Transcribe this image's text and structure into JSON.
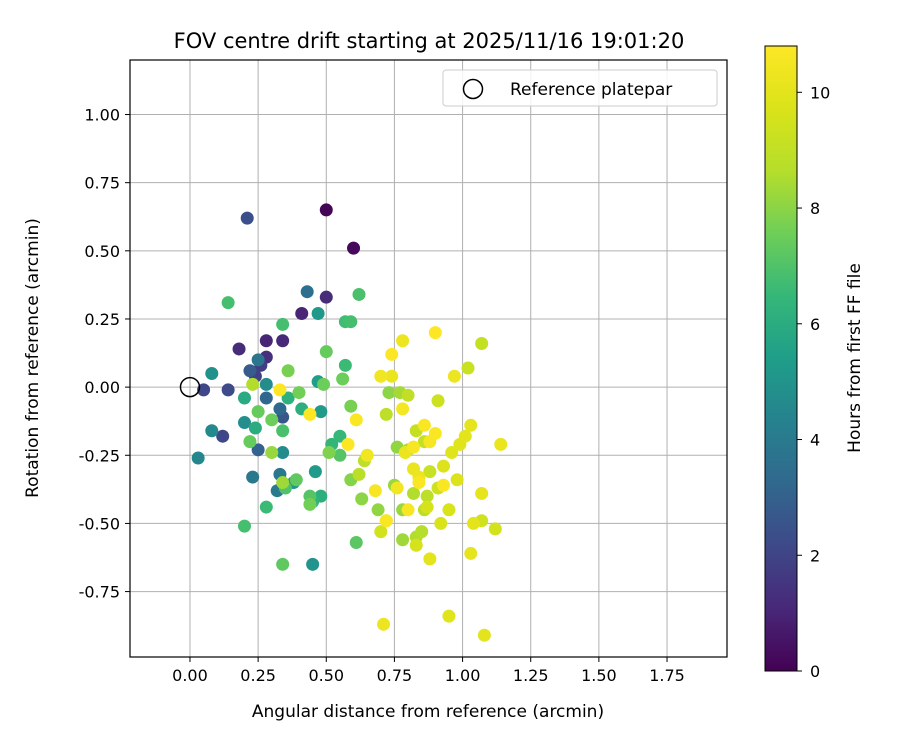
{
  "chart_data": {
    "type": "scatter",
    "title": "FOV centre drift starting at 2025/11/16 19:01:20",
    "xlabel": "Angular distance from reference (arcmin)",
    "ylabel": "Rotation from reference (arcmin)",
    "xlim": [
      -0.22,
      1.97
    ],
    "ylim": [
      -0.99,
      1.2
    ],
    "xticks": [
      "0.00",
      "0.25",
      "0.50",
      "0.75",
      "1.00",
      "1.25",
      "1.50",
      "1.75"
    ],
    "yticks": [
      "-0.75",
      "-0.50",
      "-0.25",
      "0.00",
      "0.25",
      "0.50",
      "0.75",
      "1.00"
    ],
    "grid": true,
    "legend": {
      "placement": "top-right",
      "entries": [
        "Reference platepar"
      ]
    },
    "reference_point": {
      "x": 0.0,
      "y": 0.0,
      "marker": "open-circle"
    },
    "colorbar": {
      "label": "Hours from first FF file",
      "range": [
        0,
        10.8
      ],
      "ticks": [
        "0",
        "2",
        "4",
        "6",
        "8",
        "10"
      ],
      "colormap": "viridis"
    },
    "points": [
      {
        "x": 0.5,
        "y": 0.65,
        "h": 0.1
      },
      {
        "x": 0.6,
        "y": 0.51,
        "h": 0.2
      },
      {
        "x": 0.21,
        "y": 0.62,
        "h": 2.4
      },
      {
        "x": 0.41,
        "y": 0.27,
        "h": 1.0
      },
      {
        "x": 0.5,
        "y": 0.33,
        "h": 1.2
      },
      {
        "x": 0.28,
        "y": 0.17,
        "h": 1.0
      },
      {
        "x": 0.34,
        "y": 0.17,
        "h": 1.1
      },
      {
        "x": 0.18,
        "y": 0.14,
        "h": 1.2
      },
      {
        "x": 0.28,
        "y": 0.11,
        "h": 1.3
      },
      {
        "x": 0.26,
        "y": 0.08,
        "h": 1.8
      },
      {
        "x": 0.24,
        "y": 0.04,
        "h": 1.9
      },
      {
        "x": 0.05,
        "y": -0.01,
        "h": 2.1
      },
      {
        "x": 0.14,
        "y": -0.01,
        "h": 2.2
      },
      {
        "x": 0.12,
        "y": -0.18,
        "h": 2.1
      },
      {
        "x": 0.34,
        "y": -0.11,
        "h": 2.6
      },
      {
        "x": 0.43,
        "y": 0.35,
        "h": 3.5
      },
      {
        "x": 0.25,
        "y": 0.1,
        "h": 3.8
      },
      {
        "x": 0.22,
        "y": 0.06,
        "h": 2.8
      },
      {
        "x": 0.28,
        "y": -0.04,
        "h": 3.2
      },
      {
        "x": 0.33,
        "y": -0.08,
        "h": 3.3
      },
      {
        "x": 0.25,
        "y": -0.23,
        "h": 3.0
      },
      {
        "x": 0.23,
        "y": -0.33,
        "h": 3.9
      },
      {
        "x": 0.33,
        "y": -0.32,
        "h": 3.9
      },
      {
        "x": 0.32,
        "y": -0.38,
        "h": 4.0
      },
      {
        "x": 0.45,
        "y": -0.65,
        "h": 5.0
      },
      {
        "x": 0.47,
        "y": 0.27,
        "h": 5.2
      },
      {
        "x": 0.08,
        "y": 0.05,
        "h": 4.9
      },
      {
        "x": 0.08,
        "y": -0.16,
        "h": 4.6
      },
      {
        "x": 0.03,
        "y": -0.26,
        "h": 4.5
      },
      {
        "x": 0.2,
        "y": -0.13,
        "h": 4.8
      },
      {
        "x": 0.28,
        "y": 0.01,
        "h": 4.7
      },
      {
        "x": 0.34,
        "y": -0.24,
        "h": 4.7
      },
      {
        "x": 0.38,
        "y": -0.35,
        "h": 5.0
      },
      {
        "x": 0.46,
        "y": -0.31,
        "h": 5.3
      },
      {
        "x": 0.48,
        "y": -0.09,
        "h": 5.3
      },
      {
        "x": 0.47,
        "y": 0.02,
        "h": 5.4
      },
      {
        "x": 0.2,
        "y": -0.04,
        "h": 5.9
      },
      {
        "x": 0.24,
        "y": -0.15,
        "h": 6.0
      },
      {
        "x": 0.36,
        "y": -0.04,
        "h": 6.2
      },
      {
        "x": 0.41,
        "y": -0.08,
        "h": 6.1
      },
      {
        "x": 0.48,
        "y": -0.4,
        "h": 6.1
      },
      {
        "x": 0.45,
        "y": -0.42,
        "h": 6.3
      },
      {
        "x": 0.52,
        "y": -0.21,
        "h": 6.4
      },
      {
        "x": 0.55,
        "y": -0.18,
        "h": 6.5
      },
      {
        "x": 0.57,
        "y": 0.08,
        "h": 6.6
      },
      {
        "x": 0.57,
        "y": 0.24,
        "h": 6.7
      },
      {
        "x": 0.59,
        "y": 0.24,
        "h": 6.8
      },
      {
        "x": 0.62,
        "y": 0.34,
        "h": 6.9
      },
      {
        "x": 0.14,
        "y": 0.31,
        "h": 6.8
      },
      {
        "x": 0.34,
        "y": 0.23,
        "h": 6.8
      },
      {
        "x": 0.34,
        "y": -0.16,
        "h": 6.9
      },
      {
        "x": 0.2,
        "y": -0.51,
        "h": 6.8
      },
      {
        "x": 0.28,
        "y": -0.44,
        "h": 6.6
      },
      {
        "x": 0.35,
        "y": -0.37,
        "h": 7.0
      },
      {
        "x": 0.44,
        "y": -0.4,
        "h": 7.1
      },
      {
        "x": 0.55,
        "y": -0.25,
        "h": 7.1
      },
      {
        "x": 0.61,
        "y": -0.57,
        "h": 7.2
      },
      {
        "x": 0.34,
        "y": -0.65,
        "h": 7.3
      },
      {
        "x": 0.39,
        "y": -0.34,
        "h": 7.3
      },
      {
        "x": 0.5,
        "y": 0.13,
        "h": 7.4
      },
      {
        "x": 0.49,
        "y": 0.01,
        "h": 7.5
      },
      {
        "x": 0.56,
        "y": 0.03,
        "h": 7.5
      },
      {
        "x": 0.59,
        "y": -0.07,
        "h": 7.7
      },
      {
        "x": 0.4,
        "y": -0.02,
        "h": 7.6
      },
      {
        "x": 0.36,
        "y": 0.06,
        "h": 7.7
      },
      {
        "x": 0.22,
        "y": -0.2,
        "h": 7.4
      },
      {
        "x": 0.3,
        "y": -0.12,
        "h": 7.5
      },
      {
        "x": 0.25,
        "y": -0.09,
        "h": 7.4
      },
      {
        "x": 0.44,
        "y": -0.43,
        "h": 7.6
      },
      {
        "x": 0.51,
        "y": -0.24,
        "h": 7.8
      },
      {
        "x": 0.59,
        "y": -0.34,
        "h": 7.9
      },
      {
        "x": 0.63,
        "y": -0.41,
        "h": 8.0
      },
      {
        "x": 0.69,
        "y": -0.45,
        "h": 8.1
      },
      {
        "x": 0.73,
        "y": -0.02,
        "h": 8.0
      },
      {
        "x": 0.76,
        "y": -0.22,
        "h": 8.1
      },
      {
        "x": 0.75,
        "y": -0.36,
        "h": 8.2
      },
      {
        "x": 0.78,
        "y": -0.45,
        "h": 8.2
      },
      {
        "x": 0.78,
        "y": -0.56,
        "h": 8.3
      },
      {
        "x": 0.34,
        "y": -0.35,
        "h": 8.3
      },
      {
        "x": 0.3,
        "y": -0.24,
        "h": 8.2
      },
      {
        "x": 0.23,
        "y": 0.01,
        "h": 8.6
      },
      {
        "x": 0.77,
        "y": -0.02,
        "h": 8.4
      },
      {
        "x": 0.8,
        "y": -0.23,
        "h": 8.5
      },
      {
        "x": 0.82,
        "y": -0.39,
        "h": 8.6
      },
      {
        "x": 0.83,
        "y": -0.55,
        "h": 8.6
      },
      {
        "x": 0.85,
        "y": -0.53,
        "h": 8.7
      },
      {
        "x": 0.86,
        "y": -0.45,
        "h": 8.8
      },
      {
        "x": 0.87,
        "y": -0.4,
        "h": 8.9
      },
      {
        "x": 0.62,
        "y": -0.32,
        "h": 8.8
      },
      {
        "x": 0.64,
        "y": -0.27,
        "h": 8.9
      },
      {
        "x": 0.72,
        "y": -0.1,
        "h": 8.9
      },
      {
        "x": 0.8,
        "y": -0.03,
        "h": 9.0
      },
      {
        "x": 0.83,
        "y": -0.16,
        "h": 9.1
      },
      {
        "x": 0.86,
        "y": -0.2,
        "h": 9.1
      },
      {
        "x": 0.88,
        "y": -0.31,
        "h": 9.2
      },
      {
        "x": 0.91,
        "y": -0.37,
        "h": 9.3
      },
      {
        "x": 0.91,
        "y": -0.05,
        "h": 9.3
      },
      {
        "x": 1.02,
        "y": 0.07,
        "h": 9.2
      },
      {
        "x": 1.07,
        "y": 0.16,
        "h": 9.1
      },
      {
        "x": 1.07,
        "y": -0.49,
        "h": 9.4
      },
      {
        "x": 1.12,
        "y": -0.52,
        "h": 9.5
      },
      {
        "x": 0.7,
        "y": -0.53,
        "h": 9.5
      },
      {
        "x": 0.72,
        "y": -0.49,
        "h": 9.5
      },
      {
        "x": 0.83,
        "y": -0.58,
        "h": 9.6
      },
      {
        "x": 0.87,
        "y": -0.44,
        "h": 9.6
      },
      {
        "x": 0.92,
        "y": -0.5,
        "h": 9.7
      },
      {
        "x": 0.95,
        "y": -0.45,
        "h": 9.7
      },
      {
        "x": 0.98,
        "y": -0.34,
        "h": 9.8
      },
      {
        "x": 0.93,
        "y": -0.29,
        "h": 9.8
      },
      {
        "x": 0.96,
        "y": -0.24,
        "h": 9.9
      },
      {
        "x": 0.99,
        "y": -0.21,
        "h": 9.9
      },
      {
        "x": 1.01,
        "y": -0.18,
        "h": 10.0
      },
      {
        "x": 1.03,
        "y": -0.14,
        "h": 10.1
      },
      {
        "x": 1.04,
        "y": -0.5,
        "h": 10.0
      },
      {
        "x": 1.03,
        "y": -0.61,
        "h": 10.1
      },
      {
        "x": 1.07,
        "y": -0.39,
        "h": 10.1
      },
      {
        "x": 1.14,
        "y": -0.21,
        "h": 10.2
      },
      {
        "x": 0.95,
        "y": -0.84,
        "h": 9.9
      },
      {
        "x": 1.08,
        "y": -0.91,
        "h": 10.0
      },
      {
        "x": 0.71,
        "y": -0.87,
        "h": 10.3
      },
      {
        "x": 0.78,
        "y": 0.17,
        "h": 10.3
      },
      {
        "x": 0.74,
        "y": 0.04,
        "h": 10.2
      },
      {
        "x": 0.7,
        "y": 0.04,
        "h": 10.4
      },
      {
        "x": 0.97,
        "y": 0.04,
        "h": 10.3
      },
      {
        "x": 0.79,
        "y": -0.24,
        "h": 10.2
      },
      {
        "x": 0.82,
        "y": -0.3,
        "h": 10.2
      },
      {
        "x": 0.84,
        "y": -0.33,
        "h": 10.3
      },
      {
        "x": 0.88,
        "y": -0.63,
        "h": 10.0
      },
      {
        "x": 0.65,
        "y": -0.25,
        "h": 10.4
      },
      {
        "x": 0.76,
        "y": -0.37,
        "h": 10.4
      },
      {
        "x": 0.78,
        "y": -0.08,
        "h": 10.5
      },
      {
        "x": 0.82,
        "y": -0.22,
        "h": 10.6
      },
      {
        "x": 0.86,
        "y": -0.14,
        "h": 10.7
      },
      {
        "x": 0.88,
        "y": -0.2,
        "h": 10.6
      },
      {
        "x": 0.9,
        "y": -0.17,
        "h": 10.7
      },
      {
        "x": 0.84,
        "y": -0.35,
        "h": 10.7
      },
      {
        "x": 0.93,
        "y": -0.36,
        "h": 10.7
      },
      {
        "x": 0.68,
        "y": -0.38,
        "h": 10.6
      },
      {
        "x": 0.72,
        "y": -0.49,
        "h": 10.7
      },
      {
        "x": 0.8,
        "y": -0.45,
        "h": 10.6
      },
      {
        "x": 0.61,
        "y": -0.12,
        "h": 10.7
      },
      {
        "x": 0.58,
        "y": -0.21,
        "h": 10.8
      },
      {
        "x": 0.74,
        "y": 0.12,
        "h": 10.8
      },
      {
        "x": 0.9,
        "y": 0.2,
        "h": 10.8
      },
      {
        "x": 0.33,
        "y": -0.01,
        "h": 10.8
      },
      {
        "x": 0.44,
        "y": -0.1,
        "h": 10.8
      }
    ]
  }
}
